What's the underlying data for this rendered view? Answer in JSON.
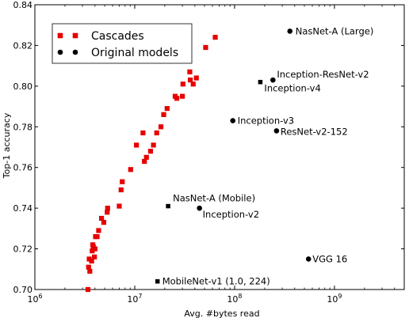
{
  "chart_data": {
    "type": "scatter",
    "xlabel": "Avg. #bytes read",
    "ylabel": "Top-1 accuracy",
    "xscale": "log",
    "xlim": [
      1000000,
      5000000000
    ],
    "ylim": [
      0.7,
      0.84
    ],
    "x_ticks": [
      {
        "value": 1000000,
        "base": "10",
        "exp": "6"
      },
      {
        "value": 10000000,
        "base": "10",
        "exp": "7"
      },
      {
        "value": 100000000,
        "base": "10",
        "exp": "8"
      },
      {
        "value": 1000000000,
        "base": "10",
        "exp": "9"
      }
    ],
    "y_ticks": [
      "0.70",
      "0.72",
      "0.74",
      "0.76",
      "0.78",
      "0.80",
      "0.82",
      "0.84"
    ],
    "grid": false,
    "legend": {
      "position": "top-left",
      "entries": [
        {
          "label": "Cascades",
          "marker": "square",
          "color": "#e60000"
        },
        {
          "label": "Original models",
          "marker": "circle",
          "color": "#000000"
        }
      ]
    },
    "series": [
      {
        "name": "Cascades",
        "marker": "square",
        "color": "#e60000",
        "points": [
          [
            3400000,
            0.7
          ],
          [
            3450000,
            0.711
          ],
          [
            3550000,
            0.709
          ],
          [
            3500000,
            0.715
          ],
          [
            3700000,
            0.714
          ],
          [
            3750000,
            0.719
          ],
          [
            3950000,
            0.716
          ],
          [
            3850000,
            0.721
          ],
          [
            3800000,
            0.722
          ],
          [
            4000000,
            0.72
          ],
          [
            4050000,
            0.726
          ],
          [
            4200000,
            0.726
          ],
          [
            4350000,
            0.729
          ],
          [
            4650000,
            0.735
          ],
          [
            4900000,
            0.733
          ],
          [
            5300000,
            0.738
          ],
          [
            5350000,
            0.74
          ],
          [
            7000000,
            0.741
          ],
          [
            7300000,
            0.749
          ],
          [
            7500000,
            0.753
          ],
          [
            9100000,
            0.759
          ],
          [
            10400000,
            0.771
          ],
          [
            12100000,
            0.777
          ],
          [
            12500000,
            0.763
          ],
          [
            13100000,
            0.765
          ],
          [
            14400000,
            0.768
          ],
          [
            15400000,
            0.771
          ],
          [
            16600000,
            0.777
          ],
          [
            18300000,
            0.78
          ],
          [
            19500000,
            0.786
          ],
          [
            21100000,
            0.789
          ],
          [
            25400000,
            0.795
          ],
          [
            26400000,
            0.794
          ],
          [
            30000000,
            0.795
          ],
          [
            30400000,
            0.801
          ],
          [
            35600000,
            0.807
          ],
          [
            36000000,
            0.803
          ],
          [
            38500000,
            0.801
          ],
          [
            41400000,
            0.804
          ],
          [
            51300000,
            0.819
          ],
          [
            64000000,
            0.824
          ]
        ]
      },
      {
        "name": "Original models",
        "marker": "circle",
        "color": "#000000",
        "points": [
          {
            "x": 358000000,
            "y": 0.827,
            "label": "NasNet-A (Large)",
            "marker": "circle"
          },
          {
            "x": 242000000,
            "y": 0.803,
            "label": "Inception-ResNet-v2",
            "marker": "circle"
          },
          {
            "x": 181000000,
            "y": 0.802,
            "label": "Inception-v4",
            "marker": "square"
          },
          {
            "x": 96000000,
            "y": 0.783,
            "label": "Inception-v3",
            "marker": "circle"
          },
          {
            "x": 263000000,
            "y": 0.778,
            "label": "ResNet-v2-152",
            "marker": "circle"
          },
          {
            "x": 21600000,
            "y": 0.741,
            "label": "NasNet-A (Mobile)",
            "marker": "square"
          },
          {
            "x": 44500000,
            "y": 0.74,
            "label": "Inception-v2",
            "marker": "circle"
          },
          {
            "x": 550000000,
            "y": 0.715,
            "label": "VGG 16",
            "marker": "circle"
          },
          {
            "x": 16900000,
            "y": 0.704,
            "label": "MobileNet-v1 (1.0, 224)",
            "marker": "square"
          }
        ]
      }
    ]
  }
}
